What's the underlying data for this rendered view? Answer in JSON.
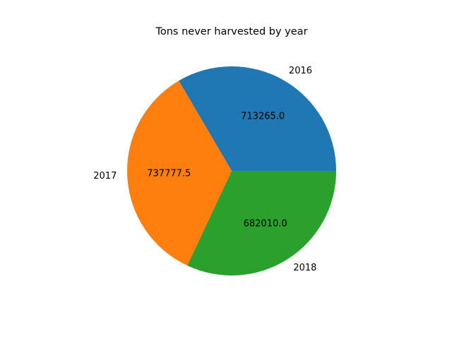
{
  "chart_data": {
    "type": "pie",
    "title": "Tons never harvested by year",
    "categories": [
      "2016",
      "2017",
      "2018"
    ],
    "values": [
      713265.0,
      737777.5,
      682010.0
    ],
    "value_labels": [
      "713265.0",
      "737777.5",
      "682010.0"
    ],
    "colors": [
      "#1f77b4",
      "#ff7f0e",
      "#2ca02c"
    ],
    "start_angle": 0,
    "direction": "counterclockwise",
    "legend": "none"
  }
}
